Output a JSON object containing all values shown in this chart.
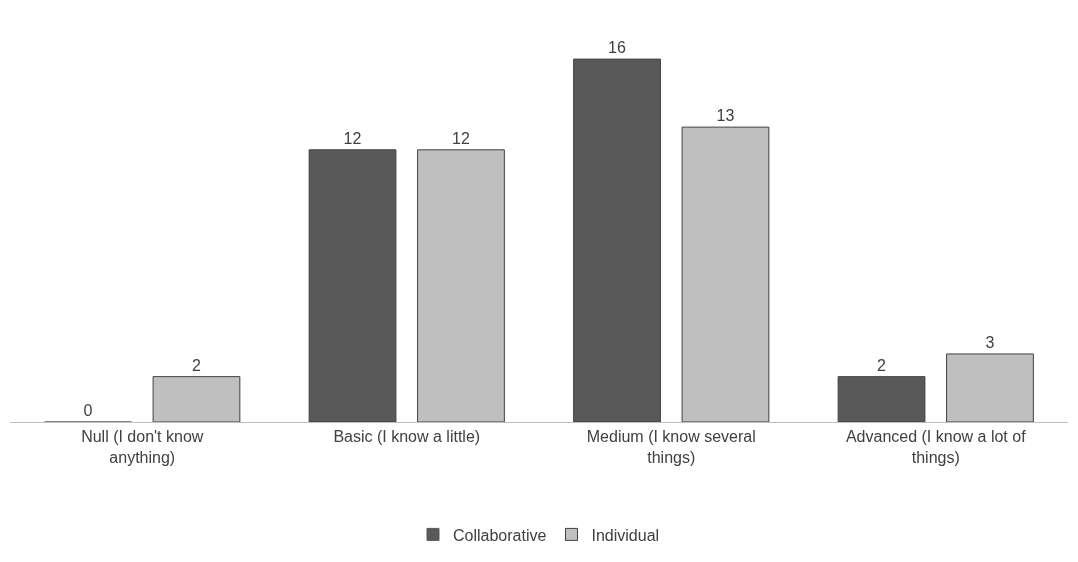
{
  "chart_data": {
    "type": "bar",
    "categories": [
      "Null (I don't know anything)",
      "Basic (I know a little)",
      "Medium (I know several things)",
      "Advanced (I know a lot of things)"
    ],
    "series": [
      {
        "name": "Collaborative",
        "color": "#595959",
        "values": [
          0,
          12,
          16,
          2
        ]
      },
      {
        "name": "Individual",
        "color": "#bfbfbf",
        "values": [
          2,
          12,
          13,
          3
        ]
      }
    ],
    "data_labels": true,
    "legend": "bottom"
  }
}
